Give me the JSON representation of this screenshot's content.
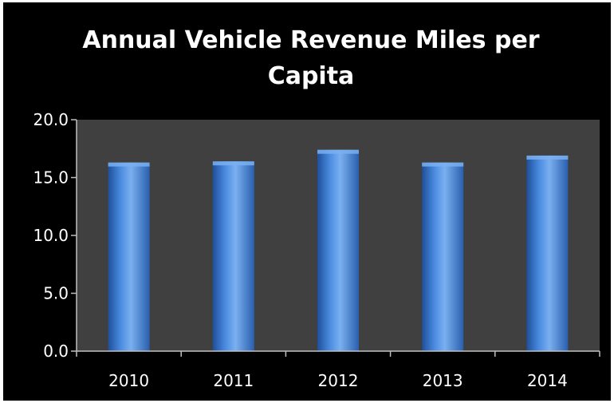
{
  "chart_data": {
    "type": "bar",
    "title": "Annual Vehicle Revenue Miles per\nCapita",
    "xlabel": "",
    "ylabel": "",
    "categories": [
      "2010",
      "2011",
      "2012",
      "2013",
      "2014"
    ],
    "values": [
      16.3,
      16.4,
      17.4,
      16.3,
      16.9
    ],
    "ylim": [
      0,
      20
    ],
    "yticks": [
      "0.0",
      "5.0",
      "10.0",
      "15.0",
      "20.0"
    ],
    "grid": false,
    "legend": "none"
  },
  "colors": {
    "background": "#000000",
    "plot_area": "#404040",
    "bar_fill": "#3f7fd6",
    "bar_light": "#7ab0f0",
    "bar_dark": "#1f4f9a",
    "axis": "#bfbfbf",
    "text": "#ffffff"
  }
}
